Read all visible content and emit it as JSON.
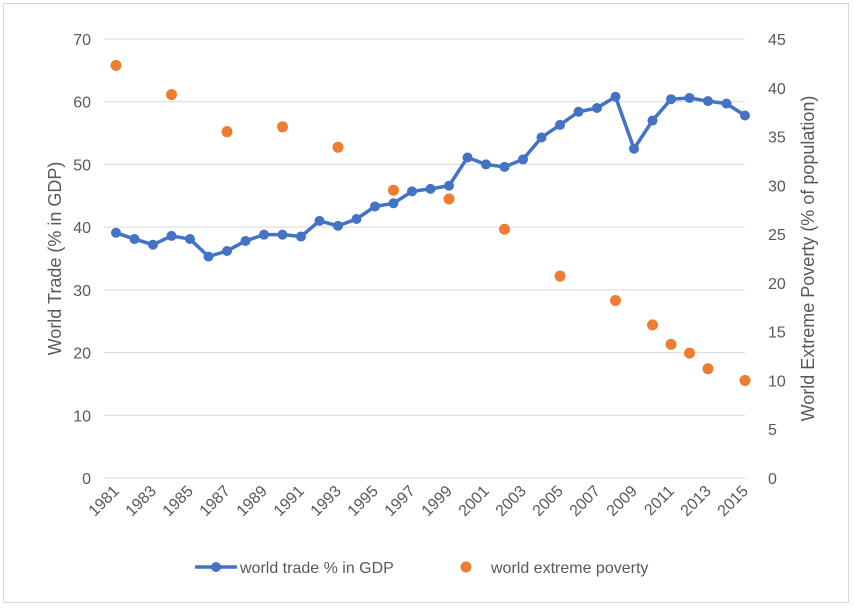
{
  "chart_data": {
    "type": "line",
    "title": "",
    "xlabel": "",
    "ylabel": "World Trade (% in GDP)",
    "y2label": "World Extreme Poverty (% of population)",
    "ylim": [
      0,
      70
    ],
    "y2lim": [
      0,
      45
    ],
    "yticks": [
      "0",
      "10",
      "20",
      "30",
      "40",
      "50",
      "60",
      "70"
    ],
    "y2ticks": [
      "0",
      "5",
      "10",
      "15",
      "20",
      "25",
      "30",
      "35",
      "40",
      "45"
    ],
    "xticks": [
      "1981",
      "1983",
      "1985",
      "1987",
      "1989",
      "1991",
      "1993",
      "1995",
      "1997",
      "1999",
      "2001",
      "2003",
      "2005",
      "2007",
      "2009",
      "2011",
      "2013",
      "2015"
    ],
    "grid": true,
    "legend_position": "bottom",
    "colors": {
      "trade": "#4472c4",
      "poverty": "#ed7d31",
      "grid": "#d9d9d9",
      "text": "#595959"
    },
    "series": [
      {
        "name": "world trade % in GDP",
        "kind": "line-markers",
        "axis": "left",
        "x": [
          1981,
          1982,
          1983,
          1984,
          1985,
          1986,
          1987,
          1988,
          1989,
          1990,
          1991,
          1992,
          1993,
          1994,
          1995,
          1996,
          1997,
          1998,
          1999,
          2000,
          2001,
          2002,
          2003,
          2004,
          2005,
          2006,
          2007,
          2008,
          2009,
          2010,
          2011,
          2012,
          2013,
          2014,
          2015
        ],
        "values": [
          39.1,
          38.1,
          37.2,
          38.6,
          38.1,
          35.3,
          36.2,
          37.8,
          38.8,
          38.8,
          38.5,
          41.0,
          40.2,
          41.3,
          43.3,
          43.8,
          45.7,
          46.1,
          46.6,
          51.1,
          50.0,
          49.6,
          50.8,
          54.3,
          56.3,
          58.4,
          59.0,
          60.8,
          52.5,
          57.0,
          60.4,
          60.6,
          60.1,
          59.7,
          57.8
        ]
      },
      {
        "name": "world extreme poverty",
        "kind": "scatter",
        "axis": "right",
        "x": [
          1981,
          1984,
          1987,
          1990,
          1993,
          1996,
          1999,
          2002,
          2005,
          2008,
          2010,
          2011,
          2012,
          2013,
          2015
        ],
        "values": [
          42.3,
          39.3,
          35.5,
          36.0,
          33.9,
          29.5,
          28.6,
          25.5,
          20.7,
          18.2,
          15.7,
          13.7,
          12.8,
          11.2,
          10.0
        ]
      }
    ]
  }
}
